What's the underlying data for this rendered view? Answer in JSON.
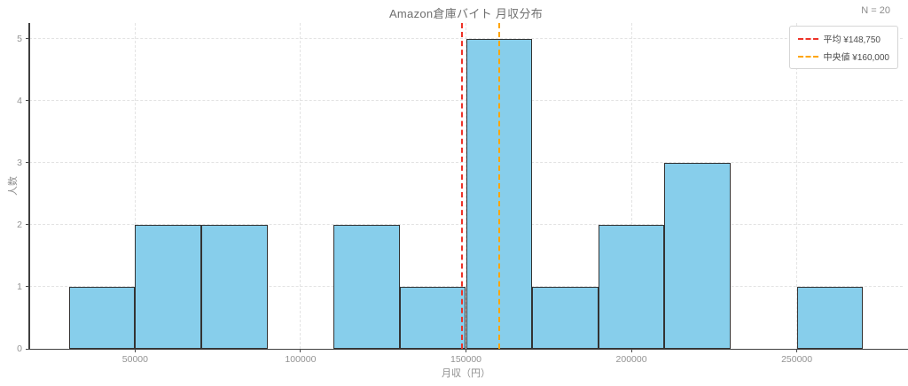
{
  "chart": {
    "title": "Amazon倉庫バイト 月収分布",
    "n_annotation": "N = 20"
  },
  "legend": {
    "position": "upper right",
    "entries": [
      {
        "label": "平均 ¥148,750",
        "color": "#ee3328",
        "line_style": "dashed"
      },
      {
        "label": "中央値 ¥160,000",
        "color": "#ffa500",
        "line_style": "dashed"
      }
    ]
  },
  "chart_data": {
    "type": "bar",
    "subtype": "histogram",
    "title": "Amazon倉庫バイト 月収分布",
    "xlabel": "月収（円）",
    "ylabel": "人数",
    "n": 20,
    "bin_edges": [
      30000,
      50000,
      70000,
      90000,
      110000,
      130000,
      150000,
      170000,
      190000,
      210000,
      230000,
      250000,
      270000
    ],
    "counts": [
      1,
      2,
      2,
      0,
      2,
      1,
      5,
      1,
      2,
      3,
      0,
      1
    ],
    "mean": 148750,
    "median": 160000,
    "xticks": [
      50000,
      100000,
      150000,
      200000,
      250000
    ],
    "yticks": [
      0,
      1,
      2,
      3,
      4,
      5
    ],
    "xlim": [
      18000,
      282000
    ],
    "ylim": [
      0,
      5.25
    ],
    "grid": true,
    "grid_style": "dashed",
    "bar_color": "#87CEEB",
    "bar_edge_color": "#333333",
    "mean_color": "#ee3328",
    "median_color": "#ffa500",
    "legend_position": "upper right"
  }
}
